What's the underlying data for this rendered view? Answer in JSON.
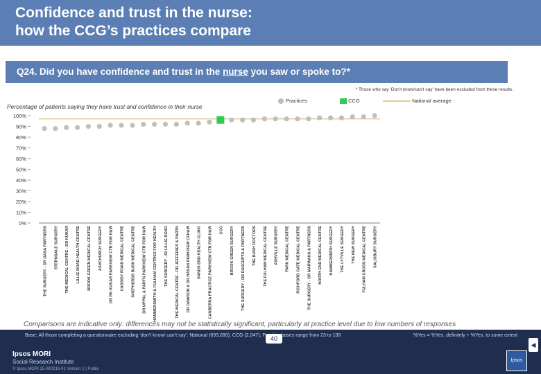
{
  "header": {
    "title_line1": "Confidence and trust in the nurse:",
    "title_line2": "how the CCG’s practices compare"
  },
  "question": {
    "prefix": "Q24. Did you have confidence and trust in the ",
    "underlined": "nurse",
    "suffix": " you saw or spoke to?*"
  },
  "footnote": "* Those who say ‘Don’t know/can’t say’ have been excluded from these results.",
  "subtitle": "Percentage of patients saying they have trust and confidence in their nurse",
  "legend": {
    "practices": "Practices",
    "ccg": "CCG",
    "national": "National average"
  },
  "colors": {
    "practice": "#bfbfbf",
    "ccg": "#2ecc4f",
    "national": "#e6c88a",
    "axis": "#555555"
  },
  "chart_data": {
    "type": "scatter",
    "title": "Percentage of patients saying they have trust and confidence in their nurse",
    "ylim": [
      0,
      100
    ],
    "yticks": [
      "0%",
      "10%",
      "20%",
      "30%",
      "40%",
      "50%",
      "60%",
      "70%",
      "80%",
      "90%",
      "100%"
    ],
    "national_average": 97,
    "ccg_index": 17,
    "categories": [
      "THE SURGERY - DR DASA PARTNERS",
      "STERNDALE SURGERY",
      "THE MEDICAL CENTRE - DR KUKAR",
      "LILLIE ROAD HEALTH CENTRE",
      "BROOK GREEN MEDICAL CENTRE",
      "ASHCHURCH SURGERY",
      "DR RK KUKAR PARKVIEW CTR FOR H&W",
      "CASSIDY ROAD MEDICAL CENTRE",
      "SHEPHERDS BUSH MEDICAL CENTRE",
      "DR UPPAL & PARTN PARKVIEW CTR FOR H&W",
      "HAMMERSMITH & FULHAM CENTRES FOR HEALTH",
      "THE SURGERY - 82 LILLIE ROAD",
      "THE MEDICAL CENTRE - DR JEFFERIES & PARTN",
      "DR DAWSON & DR HASAN PARKVIEW CFH&W",
      "SANDS END HEALTH CLINIC",
      "CANBERRA PRACTICE PARKVIEW CTR FOR H&W",
      "CCG",
      "BROOK GREEN SURGERY",
      "THE SURGERY - DR DASGUPTA & PARTNERS",
      "THE BUSH DOCTORS",
      "THE FULHAM MEDICAL CENTRE",
      "ASHVILLE SURGERY",
      "PARK MEDICAL CENTRE",
      "RICHFORD GATE MEDICAL CENTRE",
      "THE SURGERY - DR MARWAHA & PARTNERS",
      "NORTH END MEDICAL CENTRE",
      "HAMMERSMITH SURGERY",
      "THE LYTVILLE SURGERY",
      "THE NEW SURGERY",
      "FULHAM CROSS MEDICAL CENTRE",
      "SALISBURY SURGERY"
    ],
    "values": [
      88,
      88,
      89,
      89,
      90,
      90,
      91,
      91,
      91,
      92,
      92,
      92,
      92,
      93,
      93,
      94,
      96,
      96,
      96,
      96,
      97,
      97,
      97,
      97,
      97,
      98,
      98,
      98,
      99,
      99,
      100
    ]
  },
  "disclaimer": "Comparisons are indicative only: differences may not be statistically significant, particularly at practice level due to low numbers of responses",
  "footer": {
    "base": "Base: All those completing a questionnaire excluding ‘don’t know/ can’t say’: National (693,090); CCG (2,047); Practice bases range from 23 to 108",
    "key": "%Yes = %Yes, definitely + %Yes, to some extent",
    "page": "40",
    "brand_line1": "Ipsos MORI",
    "brand_line2": "Social Research Institute",
    "copyright": "© Ipsos MORI    15-080216-01 Version 1 | Public",
    "logo": "Ipsos"
  }
}
